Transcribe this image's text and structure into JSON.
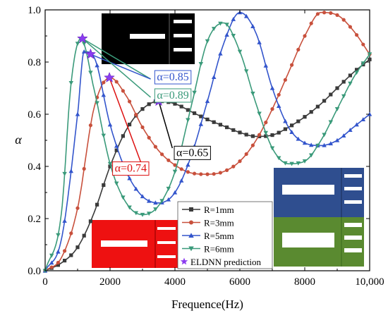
{
  "chart_data": {
    "type": "line",
    "xlabel": "Frequence(Hz)",
    "ylabel": "α",
    "xlim": [
      0,
      10000
    ],
    "ylim": [
      0,
      1.0
    ],
    "xticks": [
      0,
      2000,
      4000,
      6000,
      8000,
      10000
    ],
    "xtick_labels": [
      "0",
      "2000",
      "4000",
      "6000",
      "8000",
      "10,000"
    ],
    "yticks": [
      0,
      0.2,
      0.4,
      0.6,
      0.8,
      1.0
    ],
    "ytick_labels": [
      "0.0",
      "0.2",
      "0.4",
      "0.6",
      "0.8",
      "1.0"
    ],
    "grid": false,
    "legend_position": "lower-center",
    "series": [
      {
        "name": "R=1mm",
        "color": "#3a3a3a",
        "marker": "square",
        "x": [
          0,
          500,
          1000,
          1500,
          2000,
          2500,
          3000,
          3500,
          4000,
          4500,
          5000,
          5500,
          6000,
          6500,
          7000,
          7500,
          8000,
          8500,
          9000,
          9500,
          10000
        ],
        "y": [
          0.0,
          0.03,
          0.09,
          0.22,
          0.4,
          0.54,
          0.62,
          0.65,
          0.64,
          0.61,
          0.58,
          0.555,
          0.53,
          0.515,
          0.52,
          0.55,
          0.59,
          0.64,
          0.7,
          0.76,
          0.81
        ]
      },
      {
        "name": "R=3mm",
        "color": "#c8503c",
        "marker": "circle",
        "x": [
          0,
          500,
          1000,
          1500,
          2000,
          2500,
          3000,
          3500,
          4000,
          4500,
          5000,
          5500,
          6000,
          6500,
          7000,
          7500,
          8000,
          8500,
          9000,
          9500,
          10000
        ],
        "y": [
          0.0,
          0.05,
          0.24,
          0.62,
          0.74,
          0.67,
          0.55,
          0.46,
          0.405,
          0.375,
          0.37,
          0.38,
          0.42,
          0.5,
          0.62,
          0.76,
          0.9,
          0.99,
          0.98,
          0.92,
          0.83
        ]
      },
      {
        "name": "R=5mm",
        "color": "#3355cc",
        "marker": "triangle-up",
        "x": [
          0,
          500,
          1000,
          1200,
          1500,
          2000,
          2500,
          3000,
          3500,
          4000,
          4500,
          5000,
          5500,
          6000,
          6500,
          7000,
          7500,
          8000,
          8500,
          9000,
          9500,
          10000
        ],
        "y": [
          0.0,
          0.12,
          0.6,
          0.84,
          0.82,
          0.56,
          0.38,
          0.285,
          0.26,
          0.3,
          0.44,
          0.65,
          0.87,
          0.99,
          0.91,
          0.7,
          0.55,
          0.49,
          0.48,
          0.5,
          0.55,
          0.6
        ]
      },
      {
        "name": "R=6mm",
        "color": "#3a9a7a",
        "marker": "triangle-down",
        "x": [
          0,
          500,
          800,
          1100,
          1500,
          2000,
          2500,
          3000,
          3500,
          4000,
          4500,
          5000,
          5500,
          6000,
          6500,
          7000,
          7500,
          8000,
          8500,
          9000,
          9500,
          10000
        ],
        "y": [
          0.0,
          0.22,
          0.72,
          0.89,
          0.7,
          0.41,
          0.26,
          0.215,
          0.25,
          0.38,
          0.63,
          0.88,
          0.95,
          0.84,
          0.64,
          0.47,
          0.41,
          0.42,
          0.5,
          0.62,
          0.74,
          0.83
        ]
      }
    ],
    "predictions": {
      "name": "ELDNN prediction",
      "color": "#8b3cf0",
      "points": [
        {
          "x": 1150,
          "y": 0.89,
          "series": "R=6mm"
        },
        {
          "x": 1400,
          "y": 0.83,
          "series": "R=5mm"
        },
        {
          "x": 1980,
          "y": 0.74,
          "series": "R=3mm"
        },
        {
          "x": 3500,
          "y": 0.65,
          "series": "R=1mm"
        }
      ]
    },
    "annotations": [
      {
        "text": "α=0.85",
        "color": "#3355cc",
        "at": [
          3400,
          0.735
        ]
      },
      {
        "text": "α=0.89",
        "color": "#3a9a7a",
        "at": [
          3400,
          0.665
        ]
      },
      {
        "text": "α=0.65",
        "color": "#000000",
        "at": [
          4000,
          0.445
        ]
      },
      {
        "text": "α=0.74",
        "color": "#d11",
        "at": [
          2100,
          0.385
        ]
      }
    ]
  }
}
